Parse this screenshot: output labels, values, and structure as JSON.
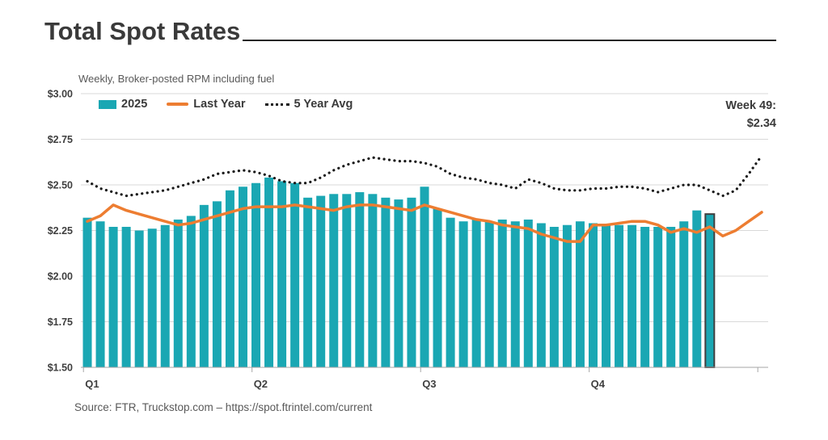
{
  "header": {
    "title": "Total Spot Rates",
    "subtitle": "Weekly, Broker-posted RPM including fuel"
  },
  "annotation": {
    "line1": "Week 49:",
    "line2": "$2.34"
  },
  "footer": {
    "source": "Source: FTR, Truckstop.com – https://spot.ftrintel.com/current"
  },
  "legend": {
    "items": [
      {
        "label": "2025",
        "marker": "swatch",
        "color": "#1aa7b3"
      },
      {
        "label": "Last Year",
        "marker": "line",
        "color": "#ed7d31"
      },
      {
        "label": "5 Year Avg",
        "marker": "dots",
        "color": "#1a1a1a"
      }
    ]
  },
  "colors": {
    "bar": "#1aa7b3",
    "last_year": "#ed7d31",
    "five_year_avg": "#1a1a1a",
    "highlight_stroke": "#3f3f3f",
    "gridline": "#d9d9d9",
    "axis": "#a6a6a6",
    "text": "#3f3f3f",
    "muted": "#595959"
  },
  "chart_data": {
    "type": "bar",
    "title": "Total Spot Rates",
    "subtitle": "Weekly, Broker-posted RPM including fuel",
    "x_unit": "week of year",
    "ylim": [
      1.5,
      3.0
    ],
    "y_tick_step": 0.25,
    "grid": "horizontal",
    "legend_position": "top-left",
    "y_ticks": [
      {
        "label": "$3.00",
        "value": 3.0
      },
      {
        "label": "$2.75",
        "value": 2.75
      },
      {
        "label": "$2.50",
        "value": 2.5
      },
      {
        "label": "$2.25",
        "value": 2.25
      },
      {
        "label": "$2.00",
        "value": 2.0
      },
      {
        "label": "$1.75",
        "value": 1.75
      },
      {
        "label": "$1.50",
        "value": 1.5
      }
    ],
    "x_axis": {
      "quarter_labels": [
        "Q1",
        "Q2",
        "Q3",
        "Q4"
      ],
      "quarter_start_weeks": [
        1,
        14,
        27,
        40
      ],
      "end_tick_week": 53
    },
    "highlight": {
      "week": 49,
      "value": 2.34,
      "label": "Week 49: $2.34"
    },
    "series": [
      {
        "name": "2025",
        "type": "bar",
        "color": "#1aa7b3",
        "start_week": 1,
        "values": [
          2.32,
          2.3,
          2.27,
          2.27,
          2.25,
          2.26,
          2.28,
          2.31,
          2.33,
          2.39,
          2.41,
          2.47,
          2.49,
          2.51,
          2.54,
          2.52,
          2.51,
          2.43,
          2.44,
          2.45,
          2.45,
          2.46,
          2.45,
          2.43,
          2.42,
          2.43,
          2.49,
          2.37,
          2.32,
          2.3,
          2.31,
          2.3,
          2.31,
          2.3,
          2.31,
          2.29,
          2.27,
          2.28,
          2.3,
          2.29,
          2.28,
          2.28,
          2.28,
          2.27,
          2.27,
          2.27,
          2.3,
          2.36,
          2.34
        ]
      },
      {
        "name": "Last Year",
        "type": "line",
        "color": "#ed7d31",
        "start_week": 1,
        "values": [
          2.3,
          2.33,
          2.39,
          2.36,
          2.34,
          2.32,
          2.3,
          2.28,
          2.29,
          2.31,
          2.33,
          2.35,
          2.37,
          2.38,
          2.38,
          2.38,
          2.39,
          2.38,
          2.37,
          2.36,
          2.38,
          2.39,
          2.39,
          2.38,
          2.37,
          2.36,
          2.39,
          2.37,
          2.35,
          2.33,
          2.31,
          2.3,
          2.28,
          2.27,
          2.26,
          2.23,
          2.21,
          2.19,
          2.19,
          2.28,
          2.28,
          2.29,
          2.3,
          2.3,
          2.28,
          2.24,
          2.26,
          2.24,
          2.27,
          2.22,
          2.25,
          2.3,
          2.35
        ]
      },
      {
        "name": "5 Year Avg",
        "type": "dotted-line",
        "color": "#1a1a1a",
        "start_week": 1,
        "values": [
          2.52,
          2.48,
          2.46,
          2.44,
          2.45,
          2.46,
          2.47,
          2.49,
          2.51,
          2.53,
          2.56,
          2.57,
          2.58,
          2.57,
          2.55,
          2.52,
          2.51,
          2.51,
          2.54,
          2.58,
          2.61,
          2.63,
          2.65,
          2.64,
          2.63,
          2.63,
          2.62,
          2.6,
          2.56,
          2.54,
          2.53,
          2.51,
          2.5,
          2.48,
          2.53,
          2.51,
          2.48,
          2.47,
          2.47,
          2.48,
          2.48,
          2.49,
          2.49,
          2.48,
          2.46,
          2.48,
          2.5,
          2.5,
          2.47,
          2.44,
          2.47,
          2.56,
          2.66
        ]
      }
    ]
  }
}
